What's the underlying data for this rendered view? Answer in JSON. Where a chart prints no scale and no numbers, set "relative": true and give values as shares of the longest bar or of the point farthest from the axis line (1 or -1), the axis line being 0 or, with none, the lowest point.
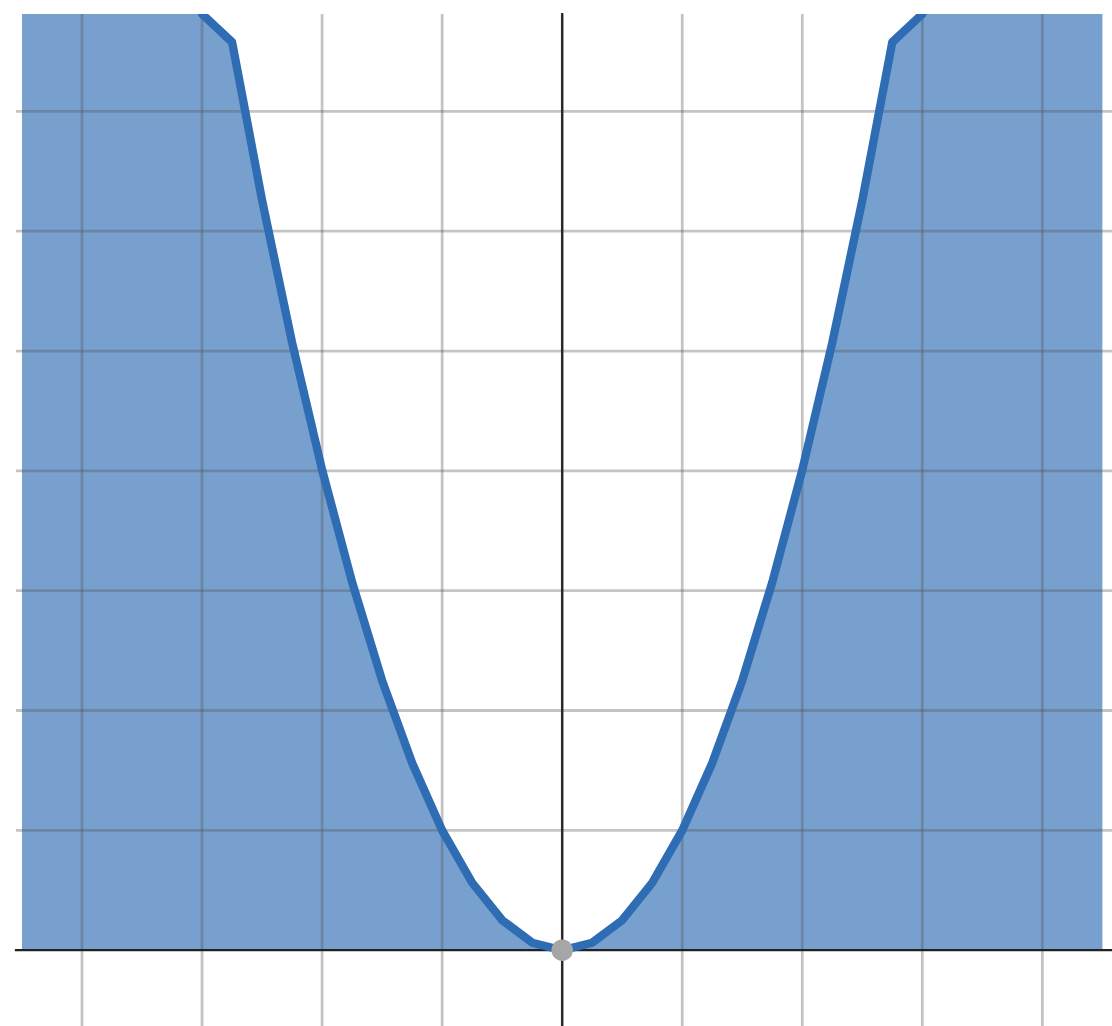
{
  "chart_data": {
    "type": "area",
    "relative": true,
    "grid": true,
    "categories": [
      null,
      null,
      null,
      null,
      null,
      null,
      null,
      null,
      null,
      null,
      null,
      null,
      null,
      null,
      null,
      null,
      null,
      null,
      null,
      null,
      null,
      null,
      null,
      null,
      null,
      null,
      null,
      null,
      null,
      null,
      null,
      null,
      null,
      null,
      null,
      null,
      null
    ],
    "series": [
      {
        "color": "#2e6db4",
        "values": [
          1,
          1,
          1,
          1,
          1,
          1,
          1,
          0.97,
          0.801,
          0.649,
          0.513,
          0.393,
          0.288,
          0.2,
          0.128,
          0.072,
          0.032,
          0.008,
          0,
          0.008,
          0.032,
          0.072,
          0.128,
          0.2,
          0.288,
          0.393,
          0.513,
          0.649,
          0.801,
          0.97,
          1,
          1,
          1,
          1,
          1,
          1,
          1
        ]
      }
    ]
  }
}
